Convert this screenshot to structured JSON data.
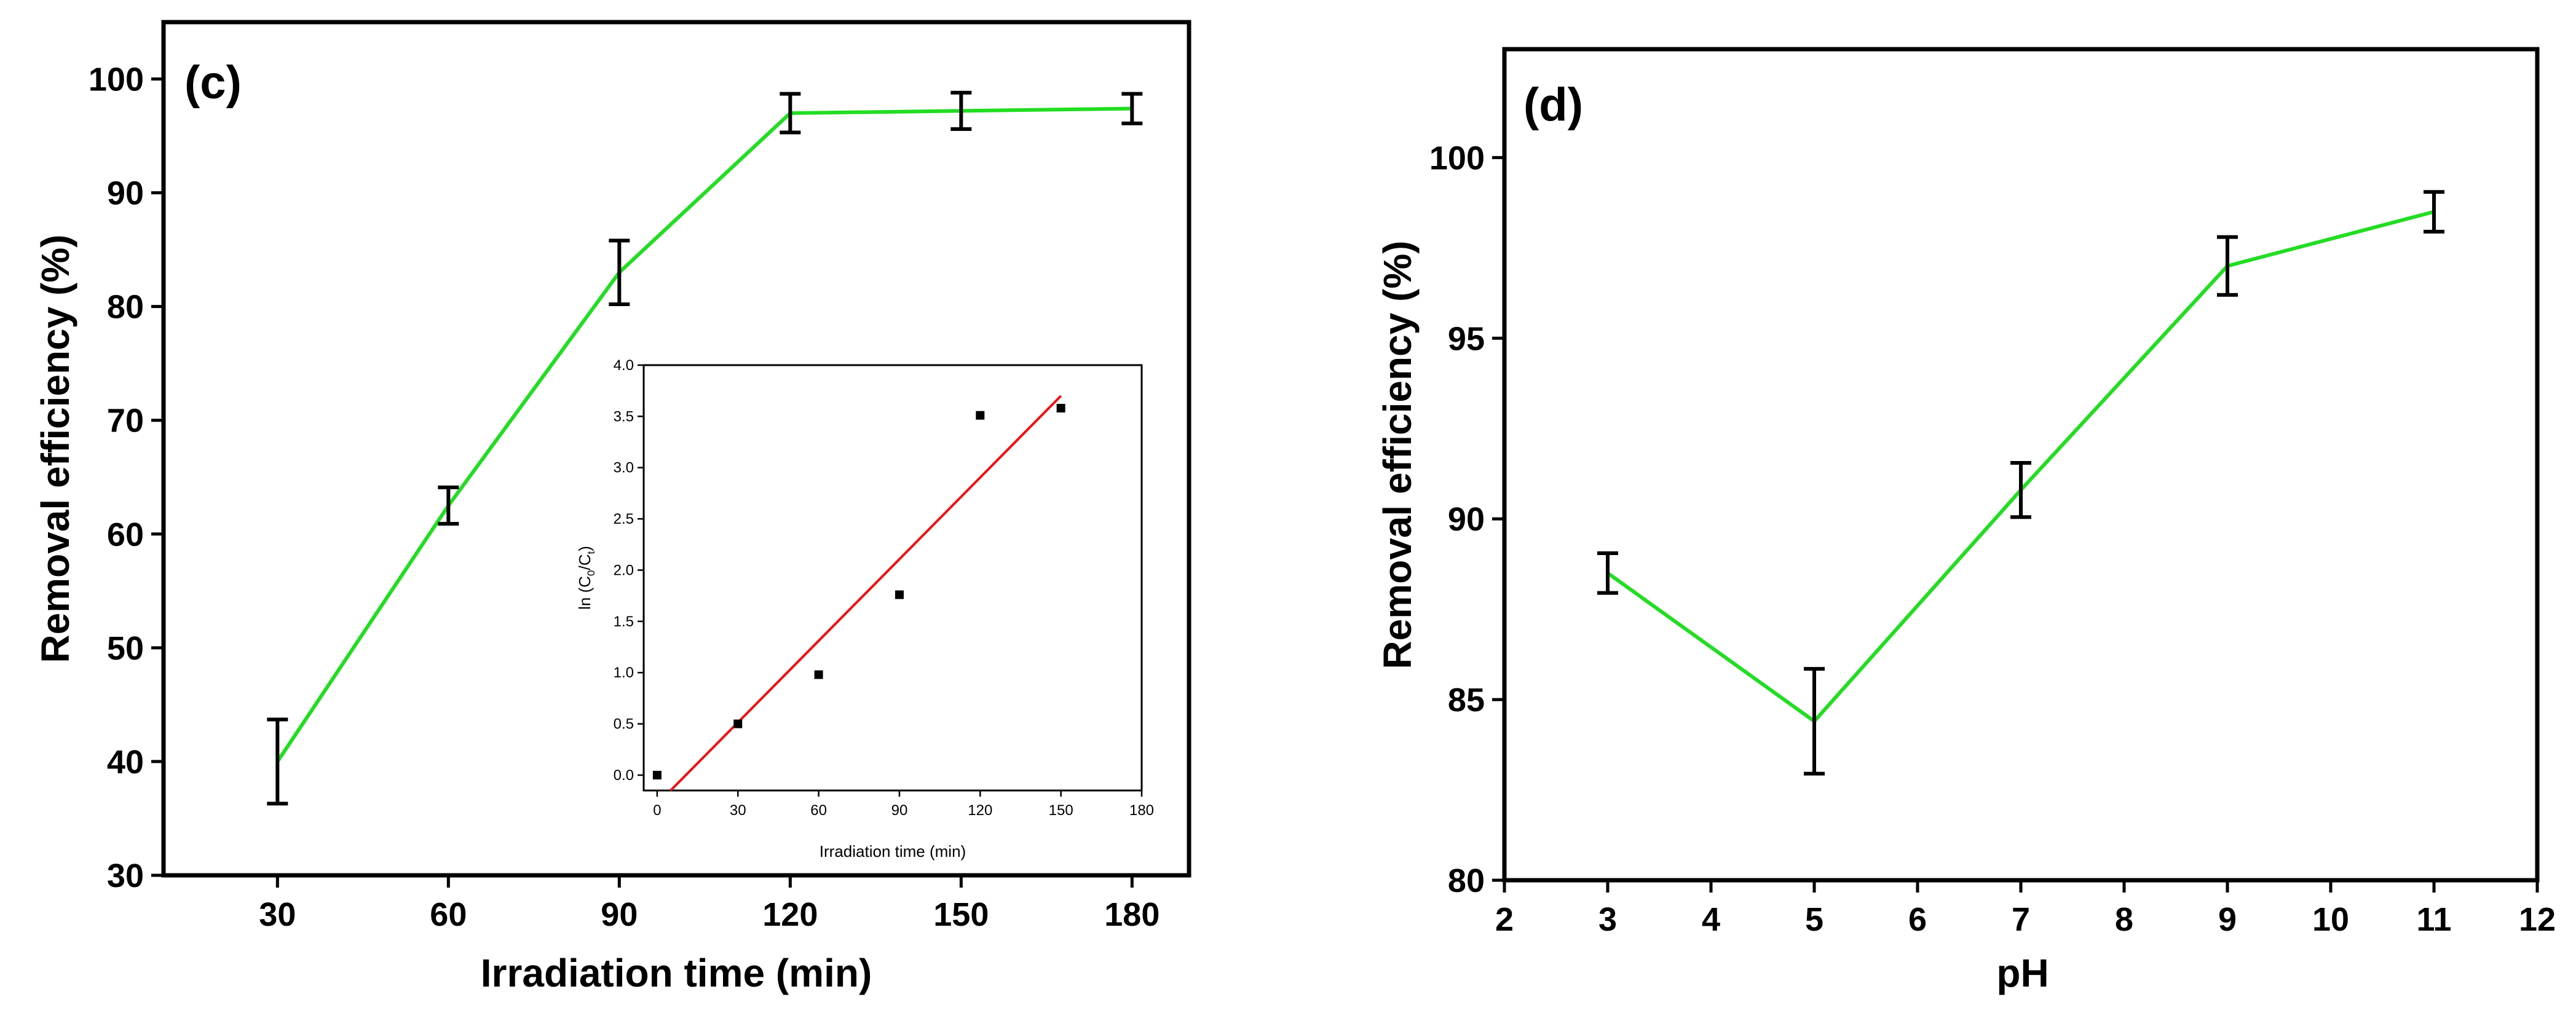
{
  "chart_data": [
    {
      "type": "line",
      "panel_label": "(c)",
      "xlabel": "Irradiation time (min)",
      "ylabel": "Removal efficiency (%)",
      "xlim": [
        10,
        190
      ],
      "ylim": [
        30,
        105
      ],
      "xticks": [
        "30",
        "60",
        "90",
        "120",
        "150",
        "180"
      ],
      "yticks": [
        "30",
        "40",
        "50",
        "60",
        "70",
        "80",
        "90",
        "100"
      ],
      "colors": {
        "series": "#22dd22",
        "error_bars": "#000000"
      },
      "series": [
        {
          "name": "Removal efficiency",
          "x": [
            30,
            60,
            90,
            120,
            150,
            180
          ],
          "values": [
            40,
            62.5,
            83,
            97,
            97.2,
            97.4
          ],
          "error": [
            3.7,
            1.6,
            2.8,
            1.7,
            1.6,
            1.3
          ]
        }
      ],
      "inset": {
        "type": "scatter",
        "xlabel": "Irradiation time (min)",
        "ylabel_main": "ln (C",
        "ylabel_sub1": "0",
        "ylabel_mid": "/C",
        "ylabel_sub2": "t",
        "ylabel_end": ")",
        "xlim": [
          -5,
          180
        ],
        "ylim": [
          -0.15,
          4.0
        ],
        "xticks": [
          "0",
          "30",
          "60",
          "90",
          "120",
          "150",
          "180"
        ],
        "yticks": [
          "0.0",
          "0.5",
          "1.0",
          "1.5",
          "2.0",
          "2.5",
          "3.0",
          "3.5",
          "4.0"
        ],
        "colors": {
          "points": "#000000",
          "fit": "#ee1111"
        },
        "points": {
          "x": [
            0,
            30,
            60,
            90,
            120,
            150
          ],
          "y": [
            0.0,
            0.5,
            0.98,
            1.76,
            3.51,
            3.58
          ]
        },
        "fit_line": {
          "x": [
            5,
            150
          ],
          "y": [
            -0.15,
            3.7
          ]
        }
      }
    },
    {
      "type": "line",
      "panel_label": "(d)",
      "xlabel": "pH",
      "ylabel": "Removal efficiency (%)",
      "xlim": [
        2,
        12
      ],
      "ylim": [
        80,
        103
      ],
      "xticks": [
        "2",
        "3",
        "4",
        "5",
        "6",
        "7",
        "8",
        "9",
        "10",
        "11",
        "12"
      ],
      "yticks": [
        "80",
        "85",
        "90",
        "95",
        "100"
      ],
      "colors": {
        "series": "#22dd22",
        "error_bars": "#000000"
      },
      "series": [
        {
          "name": "Removal efficiency",
          "x": [
            3,
            5,
            7,
            9,
            11
          ],
          "values": [
            88.5,
            84.4,
            90.8,
            97.0,
            98.5
          ],
          "error": [
            0.55,
            1.45,
            0.75,
            0.8,
            0.55
          ]
        }
      ]
    }
  ]
}
